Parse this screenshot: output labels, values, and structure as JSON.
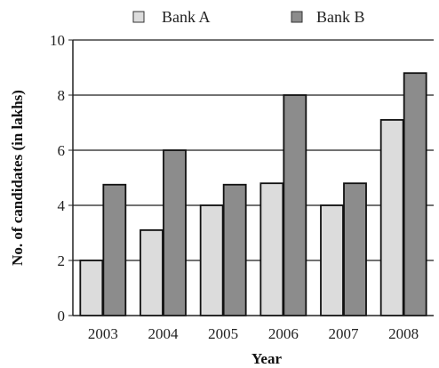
{
  "chart_data": {
    "type": "bar",
    "title": "",
    "xlabel": "Year",
    "ylabel": "No. of candidates (in lakhs)",
    "categories": [
      "2003",
      "2004",
      "2005",
      "2006",
      "2007",
      "2008"
    ],
    "series": [
      {
        "name": "Bank A",
        "values": [
          2,
          3.1,
          4,
          4.8,
          4,
          7.1
        ],
        "color": "#dcdcdc"
      },
      {
        "name": "Bank B",
        "values": [
          4.75,
          6,
          4.75,
          8,
          4.8,
          8.8
        ],
        "color": "#8c8c8c"
      }
    ],
    "ylim": [
      0,
      10
    ],
    "yticks": [
      0,
      2,
      4,
      6,
      8,
      10
    ],
    "grid": true,
    "legend_position": "top-center"
  }
}
